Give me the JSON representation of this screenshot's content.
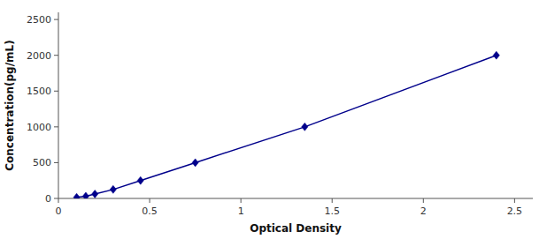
{
  "chart_data": {
    "type": "line",
    "xlabel": "Optical Density",
    "ylabel": "Concentration(pg/mL)",
    "x": [
      0.1,
      0.15,
      0.2,
      0.3,
      0.45,
      0.75,
      1.35,
      2.4
    ],
    "values": [
      15.6,
      31.25,
      62.5,
      125,
      250,
      500,
      1000,
      2000
    ],
    "color": "#00008B",
    "marker": "diamond",
    "line_style": "solid",
    "xlim": [
      0.0,
      2.6
    ],
    "ylim": [
      0,
      2600
    ],
    "xticks": [
      0,
      0.5,
      1,
      1.5,
      2,
      2.5
    ],
    "yticks": [
      0,
      500,
      1000,
      1500,
      2000,
      2500
    ],
    "grid": false
  }
}
